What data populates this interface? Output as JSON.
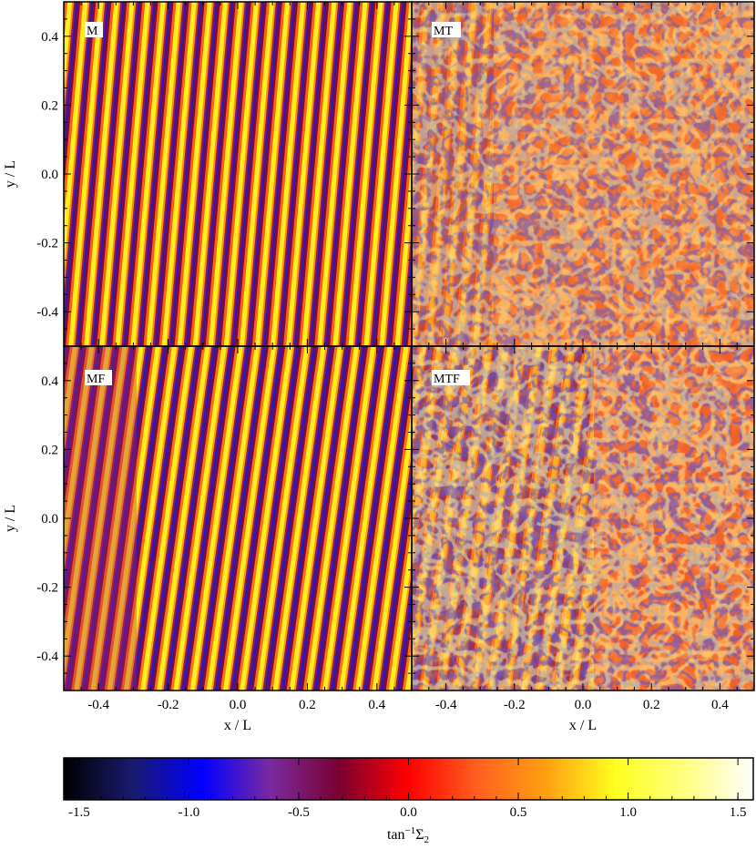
{
  "chart_data": {
    "type": "heatmap",
    "panels": [
      {
        "label": "M",
        "pattern": "diagonal-stripes",
        "palette": "full"
      },
      {
        "label": "MT",
        "pattern": "turbulent",
        "palette": "warm"
      },
      {
        "label": "MF",
        "pattern": "curved-stripes",
        "palette": "full"
      },
      {
        "label": "MTF",
        "pattern": "mixed-turbulent",
        "palette": "full"
      }
    ],
    "x_ticks_left": [
      "-0.4",
      "-0.2",
      "0.0",
      "0.2",
      "0.4"
    ],
    "x_ticks_right": [
      "-0.4",
      "-0.2",
      "0.0",
      "0.2",
      "0.4"
    ],
    "x_tick_values": [
      -0.4,
      -0.2,
      0.0,
      0.2,
      0.4
    ],
    "y_ticks": [
      "0.4",
      "0.2",
      "0.0",
      "-0.2",
      "-0.4"
    ],
    "y_tick_values": [
      0.4,
      0.2,
      0.0,
      -0.2,
      -0.4
    ],
    "xlabel_left": "x / L",
    "xlabel_right": "x / L",
    "ylabel_top": "y / L",
    "ylabel_bottom": "y / L",
    "xlim": [
      -0.5,
      0.5
    ],
    "ylim": [
      -0.5,
      0.5
    ],
    "colorbar": {
      "label_base": "tan",
      "label_sup": "−1",
      "label_var": "Σ",
      "label_sub": "2",
      "ticks": [
        "-1.5",
        "-1.0",
        "-0.5",
        "0.0",
        "0.5",
        "1.0",
        "1.5"
      ],
      "tick_values": [
        -1.5,
        -1.0,
        -0.5,
        0.0,
        0.5,
        1.0,
        1.5
      ],
      "range": [
        -1.57,
        1.57
      ],
      "stops": [
        "#000000",
        "#1a1a6e",
        "#0000ff",
        "#7a2aa0",
        "#7a0030",
        "#ff0000",
        "#ff6020",
        "#ffa010",
        "#ffff20",
        "#ffff80",
        "#ffffff"
      ]
    }
  }
}
